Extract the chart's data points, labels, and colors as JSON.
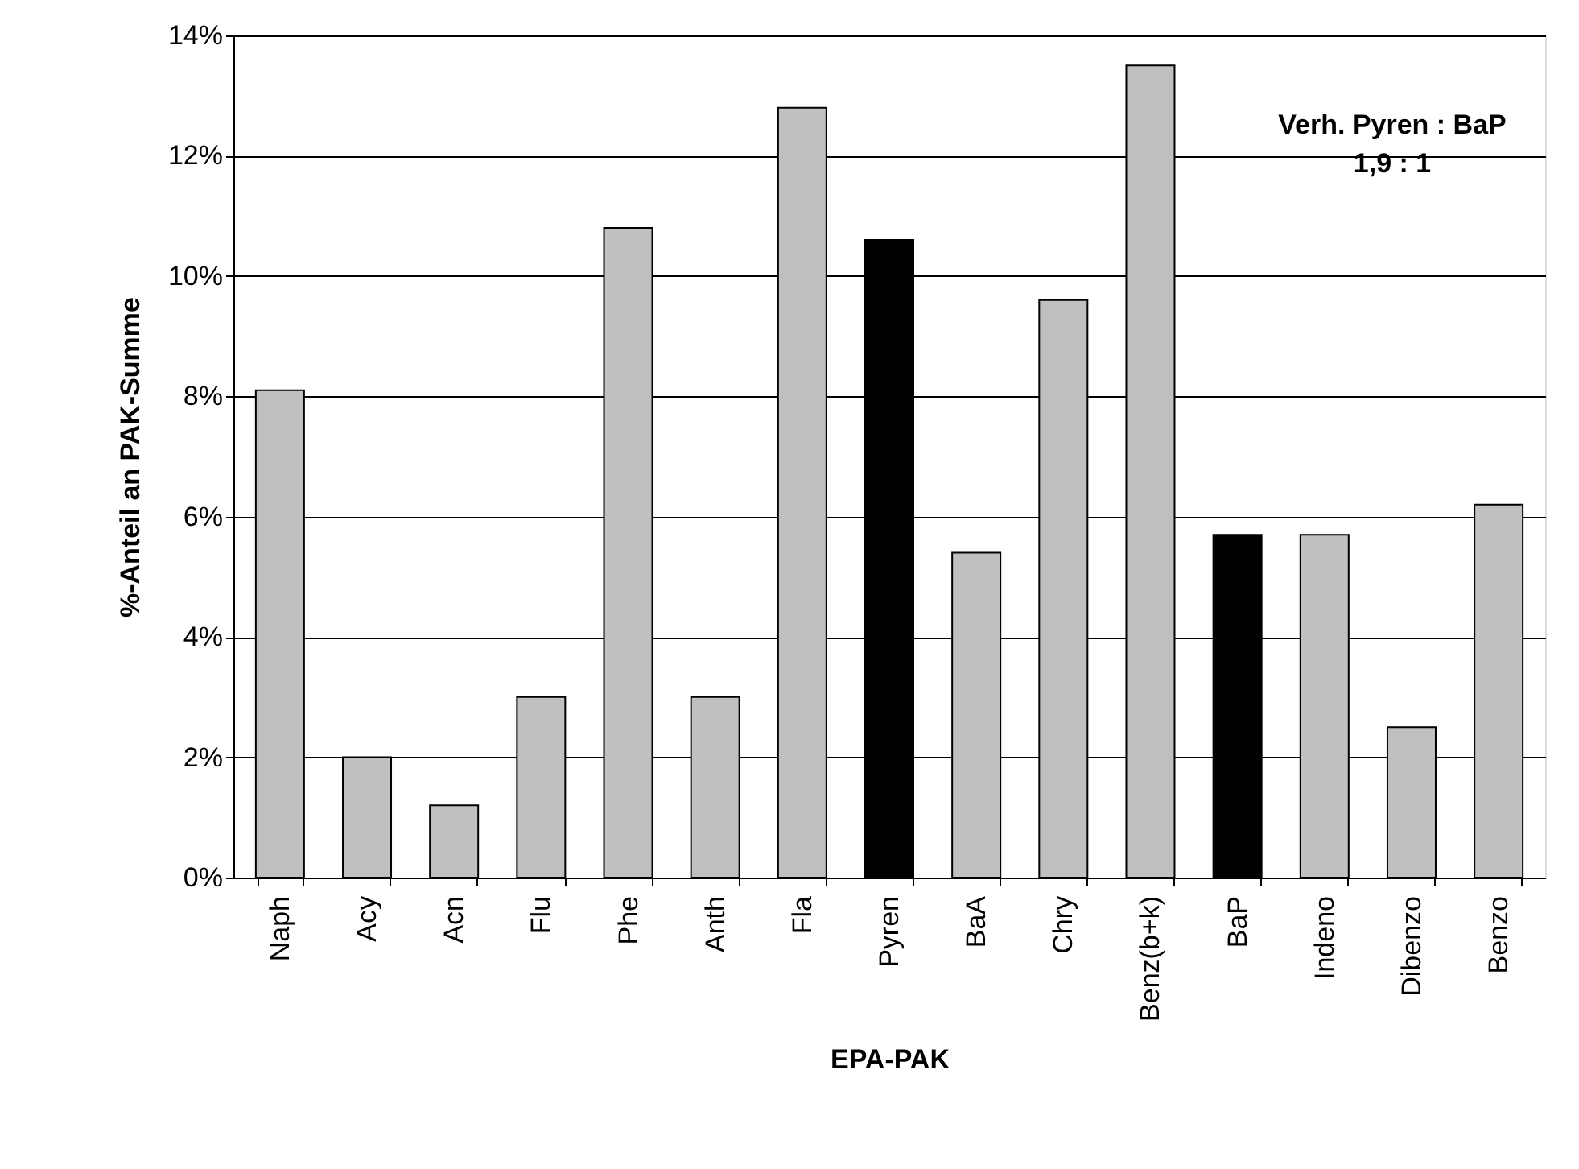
{
  "chart_data": {
    "type": "bar",
    "xlabel": "EPA-PAK",
    "ylabel": "%-Anteil an PAK-Summe",
    "categories": [
      "Naph",
      "Acy",
      "Acn",
      "Flu",
      "Phe",
      "Anth",
      "Fla",
      "Pyren",
      "BaA",
      "Chry",
      "Benz(b+k)",
      "BaP",
      "Indeno",
      "Dibenzo",
      "Benzo"
    ],
    "values": [
      8.1,
      2.0,
      1.2,
      3.0,
      10.8,
      3.0,
      12.8,
      10.6,
      5.4,
      9.6,
      13.5,
      5.7,
      5.7,
      2.5,
      6.2
    ],
    "colors": [
      "#c0c0c0",
      "#c0c0c0",
      "#c0c0c0",
      "#c0c0c0",
      "#c0c0c0",
      "#c0c0c0",
      "#c0c0c0",
      "#000000",
      "#c0c0c0",
      "#c0c0c0",
      "#c0c0c0",
      "#000000",
      "#c0c0c0",
      "#c0c0c0",
      "#c0c0c0"
    ],
    "ylim": [
      0,
      14
    ],
    "yticks": [
      {
        "value": 0,
        "label": "0%"
      },
      {
        "value": 2,
        "label": "2%"
      },
      {
        "value": 4,
        "label": "4%"
      },
      {
        "value": 6,
        "label": "6%"
      },
      {
        "value": 8,
        "label": "8%"
      },
      {
        "value": 10,
        "label": "10%"
      },
      {
        "value": 12,
        "label": "12%"
      },
      {
        "value": 14,
        "label": "14%"
      }
    ],
    "grid": "y",
    "annotations": [
      "Verh. Pyren : BaP\n1,9 : 1"
    ]
  }
}
